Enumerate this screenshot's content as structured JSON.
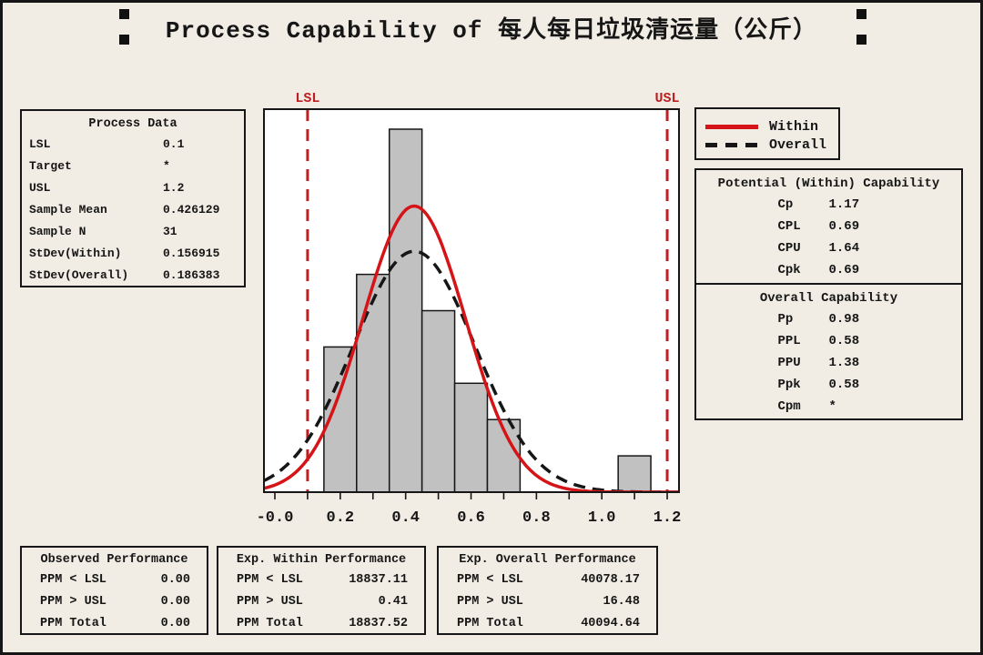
{
  "title": {
    "text": "Process Capability of 每人每日垃圾清运量（公斤）"
  },
  "process_data": {
    "header": "Process Data",
    "rows": [
      {
        "label": "LSL",
        "value": "0.1"
      },
      {
        "label": "Target",
        "value": "*"
      },
      {
        "label": "USL",
        "value": "1.2"
      },
      {
        "label": "Sample Mean",
        "value": "0.426129"
      },
      {
        "label": "Sample N",
        "value": "31"
      },
      {
        "label": "StDev(Within)",
        "value": "0.156915"
      },
      {
        "label": "StDev(Overall)",
        "value": "0.186383"
      }
    ]
  },
  "legend": {
    "items": [
      {
        "label": "Within",
        "style": "solid",
        "color": "#d51418"
      },
      {
        "label": "Overall",
        "style": "dashed",
        "color": "#161616"
      }
    ]
  },
  "within_capability": {
    "header": "Potential (Within) Capability",
    "rows": [
      {
        "label": "Cp",
        "value": "1.17"
      },
      {
        "label": "CPL",
        "value": "0.69"
      },
      {
        "label": "CPU",
        "value": "1.64"
      },
      {
        "label": "Cpk",
        "value": "0.69"
      }
    ]
  },
  "overall_capability": {
    "header": "Overall Capability",
    "rows": [
      {
        "label": "Pp",
        "value": "0.98"
      },
      {
        "label": "PPL",
        "value": "0.58"
      },
      {
        "label": "PPU",
        "value": "1.38"
      },
      {
        "label": "Ppk",
        "value": "0.58"
      },
      {
        "label": "Cpm",
        "value": "*"
      }
    ]
  },
  "performance": {
    "observed": {
      "header": "Observed Performance",
      "rows": [
        {
          "label": "PPM < LSL",
          "value": "0.00"
        },
        {
          "label": "PPM > USL",
          "value": "0.00"
        },
        {
          "label": "PPM Total",
          "value": "0.00"
        }
      ]
    },
    "exp_within": {
      "header": "Exp. Within Performance",
      "rows": [
        {
          "label": "PPM < LSL",
          "value": "18837.11"
        },
        {
          "label": "PPM > USL",
          "value": "0.41"
        },
        {
          "label": "PPM Total",
          "value": "18837.52"
        }
      ]
    },
    "exp_overall": {
      "header": "Exp. Overall Performance",
      "rows": [
        {
          "label": "PPM < LSL",
          "value": "40078.17"
        },
        {
          "label": "PPM > USL",
          "value": "16.48"
        },
        {
          "label": "PPM Total",
          "value": "40094.64"
        }
      ]
    }
  },
  "chart_data": {
    "type": "bar",
    "subtype": "capability-histogram-with-normal-curves",
    "bin_width": 0.1,
    "bins": [
      {
        "start": 0.15,
        "count": 4
      },
      {
        "start": 0.25,
        "count": 6
      },
      {
        "start": 0.35,
        "count": 10
      },
      {
        "start": 0.45,
        "count": 5
      },
      {
        "start": 0.55,
        "count": 3
      },
      {
        "start": 0.65,
        "count": 2
      },
      {
        "start": 1.05,
        "count": 1
      }
    ],
    "sample_n": 31,
    "mean": 0.426129,
    "stdev_within": 0.156915,
    "stdev_overall": 0.186383,
    "lsl": 0.1,
    "usl": 1.2,
    "lsl_label": "LSL",
    "usl_label": "USL",
    "x_minor_tick_step": 0.1,
    "x_tick_labels": [
      {
        "v": 0.0,
        "text": "-0.0"
      },
      {
        "v": 0.2,
        "text": "0.2"
      },
      {
        "v": 0.4,
        "text": "0.4"
      },
      {
        "v": 0.6,
        "text": "0.6"
      },
      {
        "v": 0.8,
        "text": "0.8"
      },
      {
        "v": 1.0,
        "text": "1.0"
      },
      {
        "v": 1.2,
        "text": "1.2"
      }
    ],
    "xlim": [
      -0.034,
      1.236
    ],
    "ylim_counts": [
      0,
      10.55
    ],
    "legend_entries": [
      "Within",
      "Overall"
    ],
    "colors": {
      "within_curve": "#d51418",
      "overall_curve": "#161616",
      "spec_line": "#bb2023",
      "bar_fill": "#c1c1c1",
      "bar_stroke": "#161616",
      "plot_bg": "#ffffff"
    }
  }
}
